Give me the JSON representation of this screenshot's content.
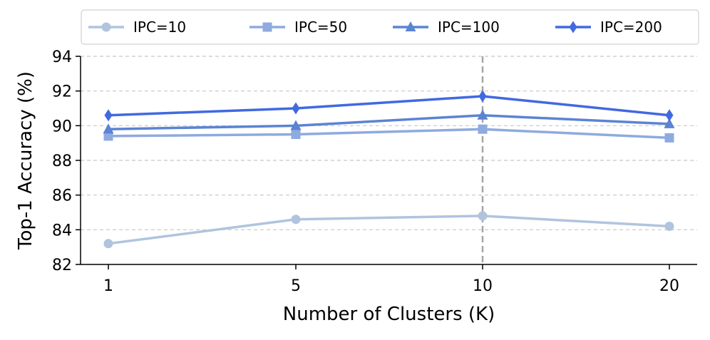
{
  "chart_data": {
    "type": "line",
    "title": "",
    "xlabel": "Number of Clusters (K)",
    "ylabel": "Top-1 Accuracy (%)",
    "categories": [
      "1",
      "5",
      "10",
      "20"
    ],
    "ylim": [
      82,
      94
    ],
    "yticks": [
      82,
      84,
      86,
      88,
      90,
      92,
      94
    ],
    "grid": "y-dashed",
    "highlight_category": "10",
    "legend_position": "top",
    "series": [
      {
        "name": "IPC=10",
        "marker": "circle",
        "color": "#b0c4de",
        "values": [
          83.2,
          84.6,
          84.8,
          84.2
        ]
      },
      {
        "name": "IPC=50",
        "marker": "square",
        "color": "#8eaadf",
        "values": [
          89.4,
          89.5,
          89.8,
          89.3
        ]
      },
      {
        "name": "IPC=100",
        "marker": "triangle",
        "color": "#5b84d2",
        "values": [
          89.8,
          90.0,
          90.6,
          90.1
        ]
      },
      {
        "name": "IPC=200",
        "marker": "diamond",
        "color": "#4169e1",
        "values": [
          90.6,
          91.0,
          91.7,
          90.6
        ]
      }
    ]
  }
}
